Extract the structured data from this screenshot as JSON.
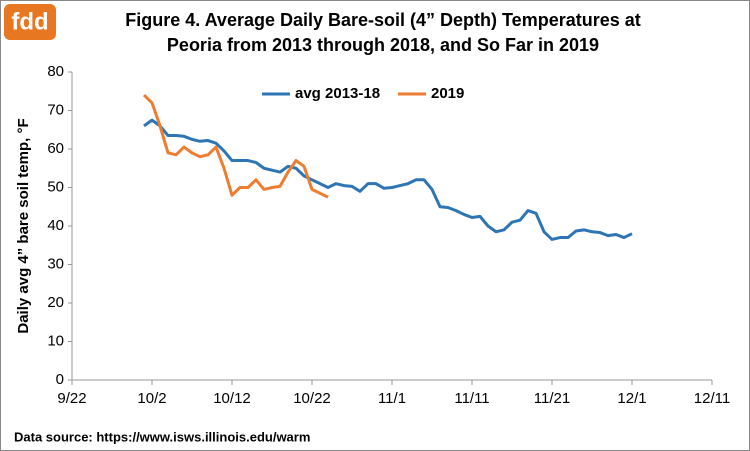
{
  "logo": "fdd",
  "source": "Data source: https://www.isws.illinois.edu/warm",
  "chart_data": {
    "type": "line",
    "title": [
      "Figure 4. Average Daily Bare-soil (4” Depth) Temperatures at",
      "Peoria from 2013 through 2018, and So Far in 2019"
    ],
    "ylabel": "Daily avg 4” bare soil temp, °F",
    "x": [
      "10/1",
      "10/2",
      "10/3",
      "10/4",
      "10/5",
      "10/6",
      "10/7",
      "10/8",
      "10/9",
      "10/10",
      "10/11",
      "10/12",
      "10/13",
      "10/14",
      "10/15",
      "10/16",
      "10/17",
      "10/18",
      "10/19",
      "10/20",
      "10/21",
      "10/22",
      "10/23",
      "10/24",
      "10/25",
      "10/26",
      "10/27",
      "10/28",
      "10/29",
      "10/30",
      "10/31",
      "11/1",
      "11/2",
      "11/3",
      "11/4",
      "11/5",
      "11/6",
      "11/7",
      "11/8",
      "11/9",
      "11/10",
      "11/11",
      "11/12",
      "11/13",
      "11/14",
      "11/15",
      "11/16",
      "11/17",
      "11/18",
      "11/19",
      "11/20",
      "11/21",
      "11/22",
      "11/23",
      "11/24",
      "11/25",
      "11/26",
      "11/27",
      "11/28",
      "11/29",
      "11/30",
      "12/1"
    ],
    "series": [
      {
        "name": "avg 2013-18",
        "color": "#2e75b6",
        "values": [
          66,
          67.5,
          66,
          63.5,
          63.5,
          63.3,
          62.5,
          62,
          62.2,
          61.5,
          59.5,
          57,
          57,
          57,
          56.5,
          55,
          54.5,
          54,
          55.5,
          55,
          53,
          52,
          51,
          50,
          51,
          50.5,
          50.3,
          49,
          51,
          51,
          49.8,
          50,
          50.5,
          51,
          52,
          52,
          49.5,
          45,
          44.8,
          44,
          43,
          42.2,
          42.5,
          40,
          38.5,
          39,
          41,
          41.5,
          44,
          43.3,
          38.5,
          36.5,
          37,
          37,
          38.7,
          39,
          38.5,
          38.3,
          37.5,
          37.8,
          37,
          38
        ]
      },
      {
        "name": "2019",
        "color": "#ed7d31",
        "values": [
          74,
          72,
          66,
          59,
          58.5,
          60.5,
          59,
          58,
          58.5,
          60.5,
          55,
          48,
          50,
          50,
          52,
          49.5,
          50,
          50.3,
          54,
          57,
          55.5,
          49.5,
          48.5,
          47.5,
          null,
          null,
          null,
          null,
          null,
          null,
          null,
          null,
          null,
          null,
          null,
          null,
          null,
          null,
          null,
          null,
          null,
          null,
          null,
          null,
          null,
          null,
          null,
          null,
          null,
          null,
          null,
          null,
          null,
          null,
          null,
          null,
          null,
          null,
          null,
          null,
          null,
          null
        ]
      }
    ],
    "xlim": [
      "9/22",
      "12/11"
    ],
    "xticks": [
      "9/22",
      "10/2",
      "10/12",
      "10/22",
      "11/1",
      "11/11",
      "11/21",
      "12/1",
      "12/11"
    ],
    "ylim": [
      0,
      80
    ],
    "yticks": [
      0,
      10,
      20,
      30,
      40,
      50,
      60,
      70,
      80
    ],
    "grid": false,
    "legend": "top"
  }
}
